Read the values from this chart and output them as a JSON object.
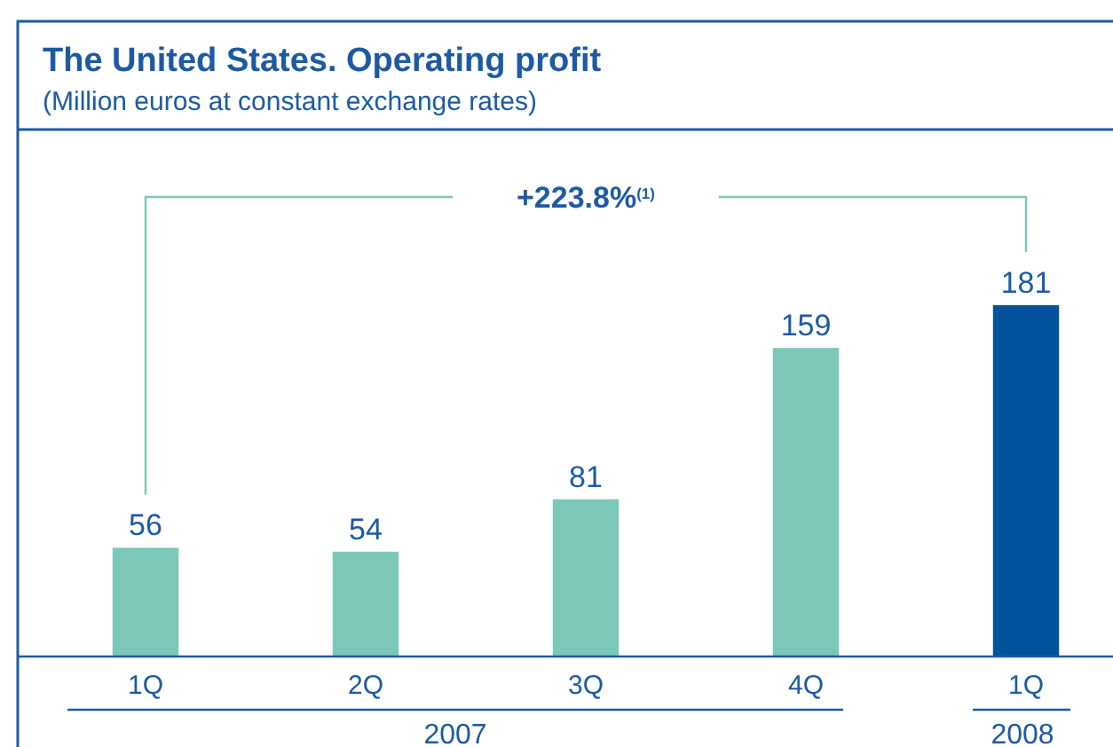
{
  "chart_data": {
    "type": "bar",
    "title": "The United States. Operating profit",
    "subtitle": "(Million euros at constant exchange rates)",
    "categories": [
      "1Q",
      "2Q",
      "3Q",
      "4Q",
      "1Q"
    ],
    "values": [
      56,
      54,
      81,
      159,
      181
    ],
    "colors": [
      "#7bc8b8",
      "#7bc8b8",
      "#7bc8b8",
      "#7bc8b8",
      "#00529b"
    ],
    "data_labels": true,
    "annotations": [
      "+223.8%$^{(1)}$",
      "2007",
      "2008"
    ]
  }
}
